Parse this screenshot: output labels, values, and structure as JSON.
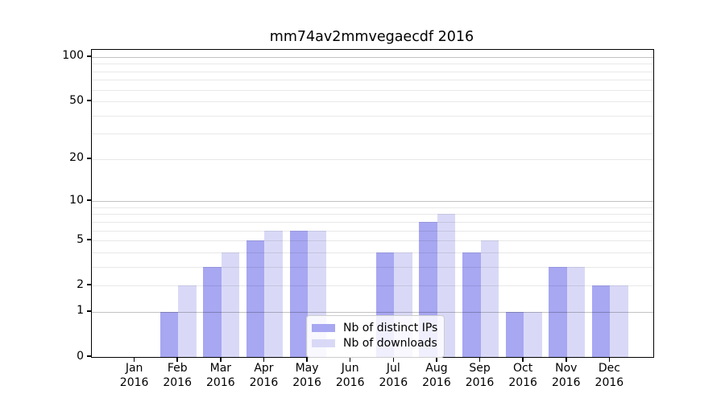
{
  "chart_data": {
    "type": "bar",
    "title": "mm74av2mmvegaecdf 2016",
    "x_months": [
      "Jan",
      "Feb",
      "Mar",
      "Apr",
      "May",
      "Jun",
      "Jul",
      "Aug",
      "Sep",
      "Oct",
      "Nov",
      "Dec"
    ],
    "x_year": "2016",
    "series": [
      {
        "name": "Nb of distinct IPs",
        "color": "#a7a7f2",
        "values": [
          0,
          1,
          3,
          5,
          6,
          0,
          4,
          7,
          4,
          1,
          3,
          2
        ]
      },
      {
        "name": "Nb of downloads",
        "color": "#d9d9f7",
        "values": [
          0,
          2,
          4,
          6,
          6,
          0,
          4,
          8,
          5,
          1,
          3,
          2
        ]
      }
    ],
    "yticks": [
      0,
      1,
      2,
      5,
      10,
      20,
      50,
      100
    ],
    "minor_grid_values": [
      2,
      3,
      4,
      5,
      6,
      7,
      8,
      9,
      20,
      30,
      40,
      50,
      60,
      70,
      80,
      90
    ],
    "major_grid_values": [
      1,
      10,
      100
    ],
    "ylim": [
      0,
      112
    ],
    "yscale": "log1p",
    "xlabel": "",
    "ylabel": "",
    "grid": true,
    "legend_position": "lower center"
  }
}
